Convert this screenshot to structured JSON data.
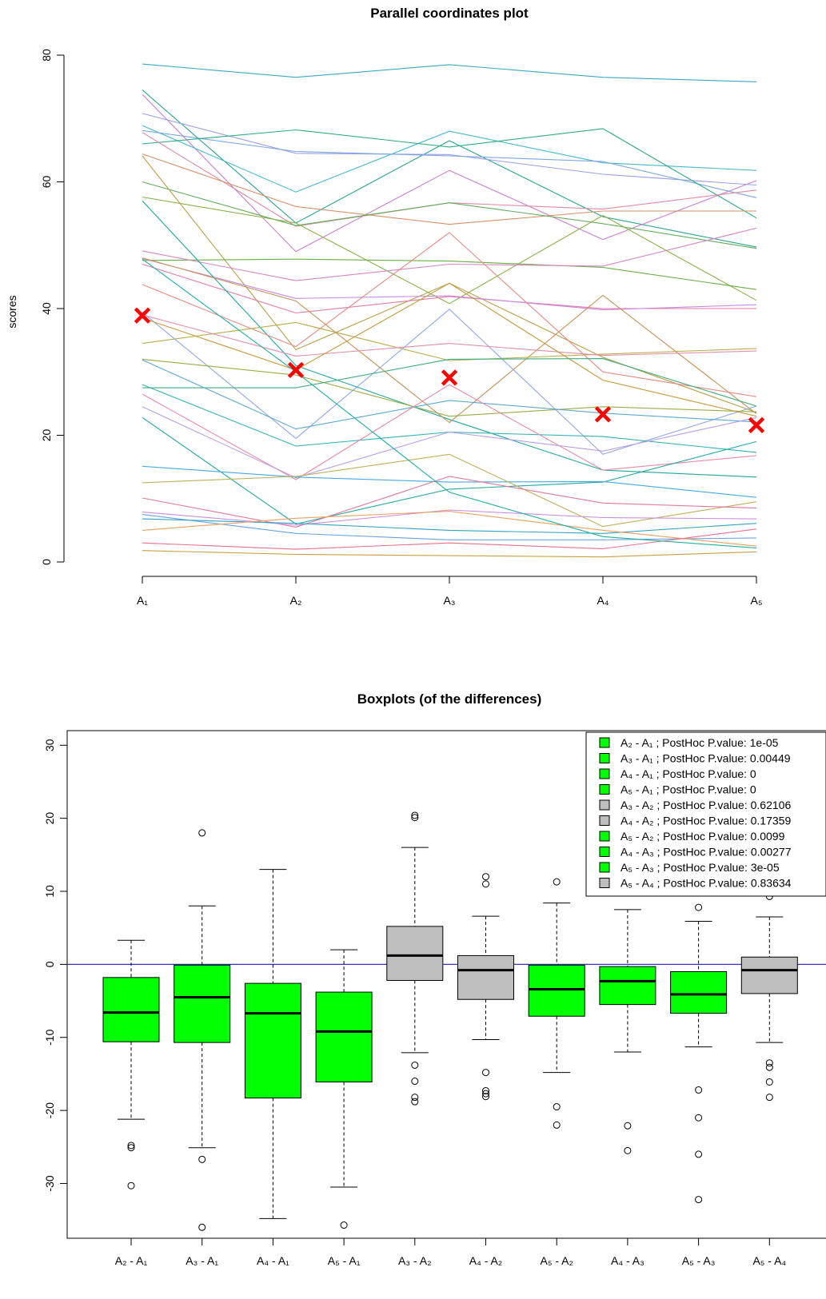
{
  "chart_data": [
    {
      "type": "line",
      "title": "Parallel coordinates plot",
      "ylabel": "scores",
      "categories": [
        "A₁",
        "A₂",
        "A₃",
        "A₄",
        "A₅"
      ],
      "y_ticks": [
        "0",
        "20",
        "40",
        "60",
        "80"
      ],
      "ylim": [
        0,
        80
      ],
      "grid": false,
      "median_marker_color": "#ff0000",
      "medians": [
        38.9,
        30.3,
        29.1,
        23.3,
        21.6
      ],
      "series": [
        {
          "color": "#3aa9c2",
          "values": [
            78.6,
            76.5,
            78.5,
            76.5,
            75.8
          ]
        },
        {
          "color": "#2ba38f",
          "values": [
            74.5,
            53.5,
            66.5,
            54.5,
            49.7
          ]
        },
        {
          "color": "#c77fd1",
          "values": [
            73.8,
            49.0,
            61.8,
            50.9,
            60.2
          ]
        },
        {
          "color": "#9b9ee6",
          "values": [
            70.8,
            64.5,
            64.3,
            61.2,
            59.5
          ]
        },
        {
          "color": "#45b8c9",
          "values": [
            68.9,
            58.4,
            68.0,
            63.0,
            61.8
          ]
        },
        {
          "color": "#7aa8de",
          "values": [
            68.1,
            64.8,
            64.1,
            63.2,
            57.5
          ]
        },
        {
          "color": "#2eaa86",
          "values": [
            66.0,
            68.2,
            65.5,
            68.4,
            54.3
          ]
        },
        {
          "color": "#df8aa0",
          "values": [
            67.8,
            53.0,
            56.7,
            55.7,
            58.7
          ]
        },
        {
          "color": "#d98f6a",
          "values": [
            64.4,
            56.1,
            53.3,
            55.4,
            55.4
          ]
        },
        {
          "color": "#62ad5a",
          "values": [
            60.0,
            53.1,
            56.7,
            53.4,
            49.5
          ]
        },
        {
          "color": "#8ab04a",
          "values": [
            57.6,
            53.5,
            40.8,
            54.7,
            41.3
          ]
        },
        {
          "color": "#b8a04a",
          "values": [
            64.1,
            33.5,
            44.0,
            32.3,
            23.6
          ]
        },
        {
          "color": "#6aad45",
          "values": [
            47.6,
            47.8,
            47.5,
            46.5,
            43.0
          ]
        },
        {
          "color": "#d685c2",
          "values": [
            49.1,
            44.4,
            47.0,
            46.7,
            52.7
          ]
        },
        {
          "color": "#e47aa2",
          "values": [
            47.0,
            39.3,
            41.9,
            40.0,
            40.0
          ]
        },
        {
          "color": "#c789e0",
          "values": [
            47.9,
            41.6,
            42.0,
            39.8,
            40.6
          ]
        },
        {
          "color": "#20a79a",
          "values": [
            57.0,
            31.0,
            22.5,
            14.5,
            13.4
          ]
        },
        {
          "color": "#c5925a",
          "values": [
            48.0,
            41.2,
            22.0,
            42.1,
            23.4
          ]
        },
        {
          "color": "#e48a80",
          "values": [
            43.8,
            34.0,
            52.0,
            30.0,
            26.1
          ]
        },
        {
          "color": "#b7ad4d",
          "values": [
            34.5,
            37.8,
            31.8,
            32.8,
            33.7
          ]
        },
        {
          "color": "#8fa6e6",
          "values": [
            39.4,
            19.5,
            39.9,
            17.0,
            24.6
          ]
        },
        {
          "color": "#e08fa8",
          "values": [
            39.0,
            32.5,
            34.5,
            32.6,
            33.3
          ]
        },
        {
          "color": "#9aac48",
          "values": [
            32.0,
            29.5,
            23.0,
            24.5,
            23.7
          ]
        },
        {
          "color": "#c49a3e",
          "values": [
            38.5,
            30.3,
            44.0,
            28.7,
            23.0
          ]
        },
        {
          "color": "#41ab7c",
          "values": [
            27.5,
            27.5,
            32.0,
            32.1,
            24.6
          ]
        },
        {
          "color": "#5aa9d3",
          "values": [
            31.9,
            21.0,
            25.5,
            23.5,
            22.1
          ]
        },
        {
          "color": "#2fb2b4",
          "values": [
            28.0,
            18.3,
            20.5,
            19.8,
            17.3
          ]
        },
        {
          "color": "#e98aa6",
          "values": [
            26.5,
            13.0,
            28.0,
            14.5,
            16.8
          ]
        },
        {
          "color": "#b89ee6",
          "values": [
            24.5,
            13.3,
            20.5,
            17.5,
            22.8
          ]
        },
        {
          "color": "#23a8a5",
          "values": [
            22.8,
            6.0,
            11.5,
            12.6,
            19.0
          ]
        },
        {
          "color": "#46a9e0",
          "values": [
            15.1,
            13.4,
            12.6,
            12.7,
            10.2
          ]
        },
        {
          "color": "#bcb05a",
          "values": [
            12.5,
            13.5,
            17.0,
            5.6,
            9.5
          ]
        },
        {
          "color": "#e07a9a",
          "values": [
            10.1,
            5.5,
            13.5,
            9.3,
            8.5
          ]
        },
        {
          "color": "#cc8ce0",
          "values": [
            7.9,
            5.8,
            8.2,
            7.0,
            6.8
          ]
        },
        {
          "color": "#6aa2e0",
          "values": [
            7.5,
            4.5,
            3.5,
            3.5,
            3.8
          ]
        },
        {
          "color": "#2ea3c2",
          "values": [
            6.8,
            6.1,
            5.0,
            4.5,
            6.1
          ]
        },
        {
          "color": "#e8a060",
          "values": [
            5.0,
            6.9,
            8.0,
            5.0,
            2.5
          ]
        },
        {
          "color": "#e8708a",
          "values": [
            3.0,
            2.0,
            3.0,
            2.1,
            5.2
          ]
        },
        {
          "color": "#c8a040",
          "values": [
            1.8,
            1.2,
            1.0,
            0.8,
            1.6
          ]
        },
        {
          "color": "#20b0a0",
          "values": [
            47.8,
            30.0,
            11.0,
            4.0,
            2.2
          ]
        }
      ]
    },
    {
      "type": "boxplot",
      "title": "Boxplots (of the differences)",
      "categories": [
        "A₂ - A₁",
        "A₃ - A₁",
        "A₄ - A₁",
        "A₅ - A₁",
        "A₃ - A₂",
        "A₄ - A₂",
        "A₅ - A₂",
        "A₄ - A₃",
        "A₅ - A₃",
        "A₅ - A₄"
      ],
      "y_ticks": [
        "-30",
        "-20",
        "-10",
        "0",
        "10",
        "20",
        "30"
      ],
      "ylim": [
        -37.5,
        32
      ],
      "reference_line": 0,
      "reference_color": "#3333cc",
      "significant_fill": "#00ff00",
      "nonsignificant_fill": "#bebebe",
      "boxes": [
        {
          "min": -21.2,
          "q1": -10.6,
          "median": -6.6,
          "q3": -1.8,
          "max": 3.3,
          "outliers": [
            -24.8,
            -25.1,
            -30.3
          ],
          "significant": true
        },
        {
          "min": -25.1,
          "q1": -10.7,
          "median": -4.5,
          "q3": -0.1,
          "max": 8.0,
          "outliers": [
            18.0,
            -26.7,
            -36.0
          ],
          "significant": true
        },
        {
          "min": -34.8,
          "q1": -18.3,
          "median": -6.7,
          "q3": -2.6,
          "max": 13.0,
          "outliers": [],
          "significant": true
        },
        {
          "min": -30.5,
          "q1": -16.1,
          "median": -9.2,
          "q3": -3.8,
          "max": 2.0,
          "outliers": [
            -35.7
          ],
          "significant": true
        },
        {
          "min": -12.1,
          "q1": -2.2,
          "median": 1.2,
          "q3": 5.2,
          "max": 16.0,
          "outliers": [
            20.1,
            20.4,
            -13.8,
            -16.0,
            -18.2,
            -18.8
          ],
          "significant": false
        },
        {
          "min": -10.3,
          "q1": -4.8,
          "median": -0.8,
          "q3": 1.2,
          "max": 6.6,
          "outliers": [
            12.0,
            11.0,
            -14.8,
            -17.3,
            -17.7,
            -18.1
          ],
          "significant": false
        },
        {
          "min": -14.8,
          "q1": -7.1,
          "median": -3.4,
          "q3": -0.1,
          "max": 8.4,
          "outliers": [
            11.3,
            -19.5,
            -22.0
          ],
          "significant": true
        },
        {
          "min": -12.0,
          "q1": -5.5,
          "median": -2.3,
          "q3": -0.3,
          "max": 7.5,
          "outliers": [
            -22.1,
            -25.5
          ],
          "significant": true
        },
        {
          "min": -11.3,
          "q1": -6.7,
          "median": -4.1,
          "q3": -1.0,
          "max": 5.9,
          "outliers": [
            7.8,
            -17.2,
            -21.0,
            -26.0,
            -32.2
          ],
          "significant": true
        },
        {
          "min": -10.7,
          "q1": -4.0,
          "median": -0.8,
          "q3": 1.0,
          "max": 6.5,
          "outliers": [
            9.3,
            -13.5,
            -14.1,
            -16.1,
            -18.2
          ],
          "significant": false
        }
      ],
      "legend": {
        "placement": "top-right",
        "entries": [
          {
            "label": "A₂ - A₁   ; PostHoc P.value: 1e-05",
            "fill": "#00ff00"
          },
          {
            "label": "A₃ - A₁   ; PostHoc P.value: 0.00449",
            "fill": "#00ff00"
          },
          {
            "label": "A₄ - A₁   ; PostHoc P.value: 0",
            "fill": "#00ff00"
          },
          {
            "label": "A₅ - A₁   ; PostHoc P.value: 0",
            "fill": "#00ff00"
          },
          {
            "label": "A₃ - A₂   ; PostHoc P.value: 0.62106",
            "fill": "#bebebe"
          },
          {
            "label": "A₄ - A₂   ; PostHoc P.value: 0.17359",
            "fill": "#bebebe"
          },
          {
            "label": "A₅ - A₂   ; PostHoc P.value: 0.0099",
            "fill": "#00ff00"
          },
          {
            "label": "A₄ - A₃   ; PostHoc P.value: 0.00277",
            "fill": "#00ff00"
          },
          {
            "label": "A₅ - A₃   ; PostHoc P.value: 3e-05",
            "fill": "#00ff00"
          },
          {
            "label": "A₅ - A₄   ; PostHoc P.value: 0.83634",
            "fill": "#bebebe"
          }
        ]
      }
    }
  ]
}
